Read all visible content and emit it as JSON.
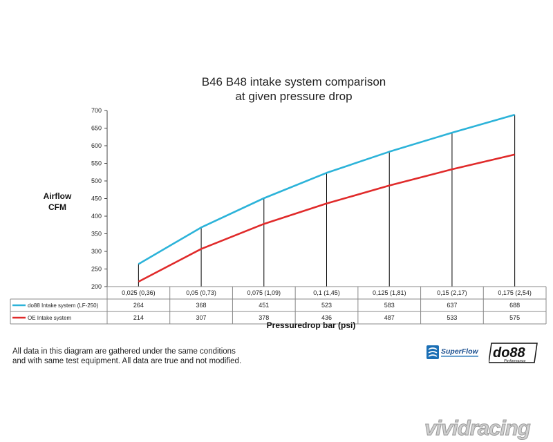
{
  "chart_data": {
    "type": "line",
    "title": [
      "B46 B48 intake system comparison",
      "at given pressure drop"
    ],
    "ylabel": [
      "Airflow",
      "CFM"
    ],
    "xlabel": "Pressuredrop bar (psi)",
    "categories": [
      "0,025 (0,36)",
      "0,05 (0,73)",
      "0,075 (1,09)",
      "0,1 (1,45)",
      "0,125 (1,81)",
      "0,15 (2,17)",
      "0,175 (2,54)"
    ],
    "ylim": [
      200,
      700
    ],
    "yticks": [
      200,
      250,
      300,
      350,
      400,
      450,
      500,
      550,
      600,
      650,
      700
    ],
    "grid": false,
    "series": [
      {
        "name": "do88 Intake system (LF-250)",
        "color": "#2cb3d9",
        "values": [
          264,
          368,
          451,
          523,
          583,
          637,
          688
        ]
      },
      {
        "name": "OE Intake system",
        "color": "#e02a2a",
        "values": [
          214,
          307,
          378,
          436,
          487,
          533,
          575
        ]
      }
    ]
  },
  "note": {
    "line1": "All data in this diagram are gathered under the same conditions",
    "line2": "and with same test equipment. All data are true and not modified."
  },
  "logos": {
    "superflow": "SuperFlow",
    "do88": "do88",
    "do88_sub": "Performance",
    "watermark": "vividracing"
  }
}
